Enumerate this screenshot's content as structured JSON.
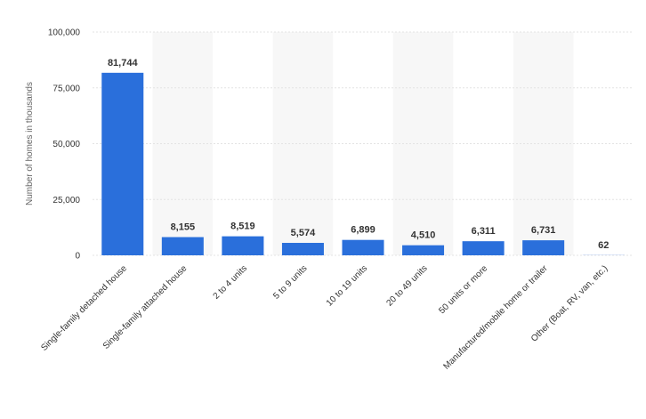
{
  "chart_data": {
    "type": "bar",
    "title": "",
    "xlabel": "",
    "ylabel": "Number of homes in thousands",
    "categories": [
      "Single-family detached house",
      "Single-family attached house",
      "2 to 4 units",
      "5 to 9 units",
      "10 to 19 units",
      "20 to 49 units",
      "50 units or more",
      "Manufactured/mobile home or trailer",
      "Other (Boat, RV, van, etc.)"
    ],
    "values": [
      81744,
      8155,
      8519,
      5574,
      6899,
      4510,
      6311,
      6731,
      62
    ],
    "data_labels": [
      "81,744",
      "8,155",
      "8,519",
      "5,574",
      "6,899",
      "4,510",
      "6,311",
      "6,731",
      "62"
    ],
    "ylim": [
      0,
      100000
    ],
    "yticks": [
      0,
      25000,
      50000,
      75000,
      100000
    ],
    "ytick_labels": [
      "0",
      "25,000",
      "50,000",
      "75,000",
      "100,000"
    ],
    "grid": true,
    "legend": "none",
    "colors": {
      "bar": "#2a6fdb",
      "band": "#f7f7f7",
      "grid": "#e3e3e3",
      "text": "#333333"
    }
  }
}
